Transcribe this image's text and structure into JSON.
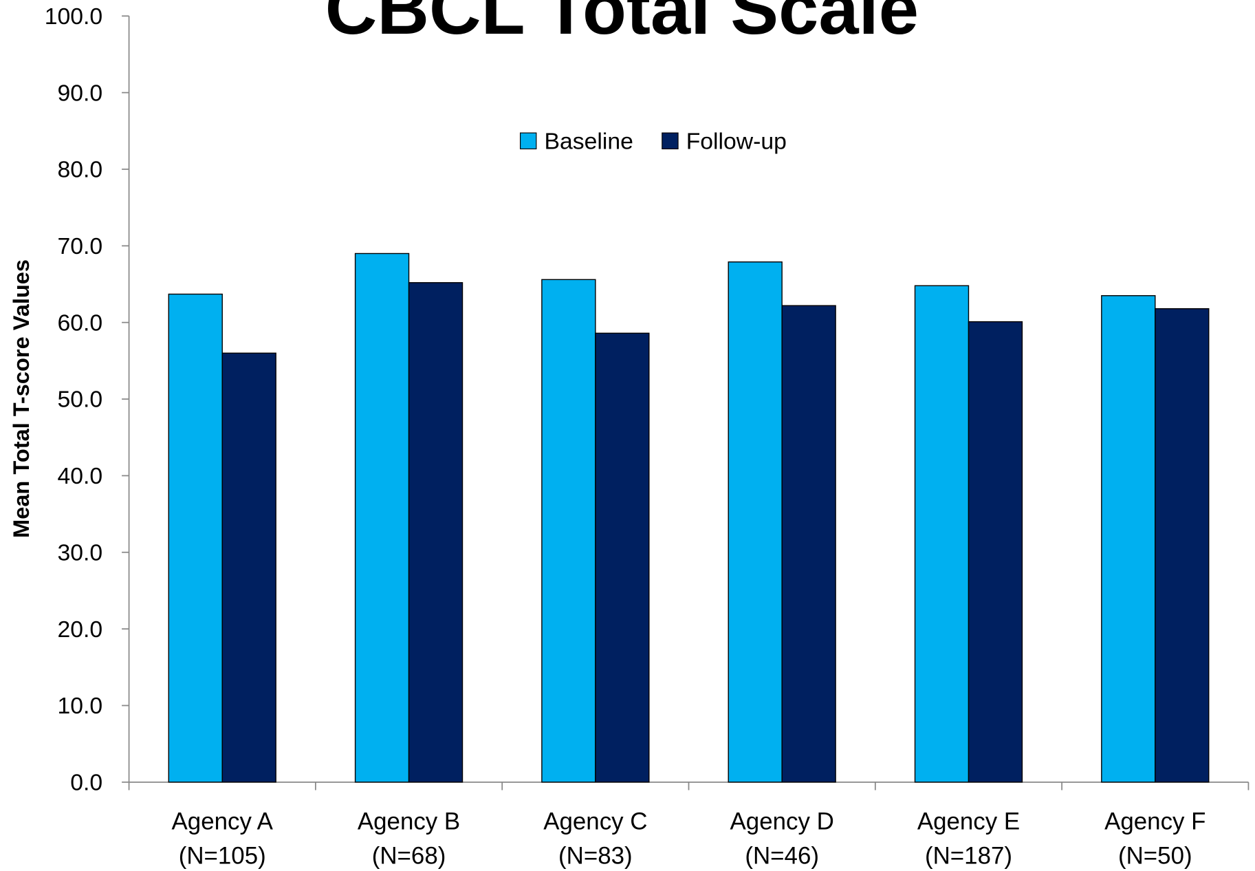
{
  "chart_data": {
    "type": "bar",
    "title": "CBCL Total Scale",
    "ylabel": "Mean Total T-score Values",
    "categories": [
      [
        "Agency A",
        "(N=105)"
      ],
      [
        "Agency B",
        "(N=68)"
      ],
      [
        "Agency C",
        "(N=83)"
      ],
      [
        "Agency D",
        "(N=46)"
      ],
      [
        "Agency E",
        "(N=187)"
      ],
      [
        "Agency F",
        "(N=50)"
      ]
    ],
    "series": [
      {
        "name": "Baseline",
        "color": "#00b0f0",
        "values": [
          63.7,
          69.0,
          65.6,
          67.9,
          64.8,
          63.5
        ]
      },
      {
        "name": "Follow-up",
        "color": "#002060",
        "values": [
          56.0,
          65.2,
          58.6,
          62.2,
          60.1,
          61.8
        ]
      }
    ],
    "ylim": [
      0,
      100
    ],
    "yticks": [
      {
        "value": 0,
        "label": "0.0"
      },
      {
        "value": 10,
        "label": "10.0"
      },
      {
        "value": 20,
        "label": "20.0"
      },
      {
        "value": 30,
        "label": "30.0"
      },
      {
        "value": 40,
        "label": "40.0"
      },
      {
        "value": 50,
        "label": "50.0"
      },
      {
        "value": 60,
        "label": "60.0"
      },
      {
        "value": 70,
        "label": "70.0"
      },
      {
        "value": 80,
        "label": "80.0"
      },
      {
        "value": 90,
        "label": "90.0"
      },
      {
        "value": 100,
        "label": "100.0"
      }
    ],
    "legend": "top",
    "grid": false
  }
}
